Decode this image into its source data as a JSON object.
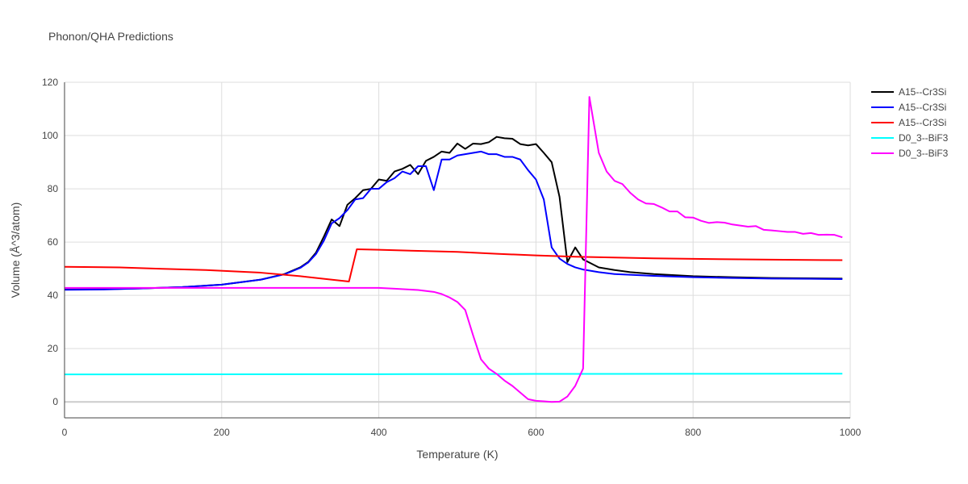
{
  "chart_data": {
    "type": "line",
    "title": "Phonon/QHA Predictions",
    "xlabel": "Temperature (K)",
    "ylabel": "Volume (Å^3/atom)",
    "xlim": [
      0,
      1000
    ],
    "ylim": [
      -6,
      120
    ],
    "xticks": [
      0,
      200,
      400,
      600,
      800,
      1000
    ],
    "yticks": [
      0,
      20,
      40,
      60,
      80,
      100,
      120
    ],
    "grid": true,
    "legend_position": "top-right",
    "series": [
      {
        "name": "A15--Cr3Si",
        "color": "#000000",
        "points": [
          [
            0,
            42.2
          ],
          [
            50,
            42.3
          ],
          [
            100,
            42.6
          ],
          [
            150,
            43.1
          ],
          [
            200,
            44.0
          ],
          [
            250,
            45.9
          ],
          [
            280,
            48.0
          ],
          [
            300,
            50.5
          ],
          [
            310,
            52.5
          ],
          [
            320,
            56.0
          ],
          [
            330,
            62.0
          ],
          [
            340,
            68.5
          ],
          [
            350,
            66.0
          ],
          [
            360,
            74.0
          ],
          [
            370,
            76.5
          ],
          [
            380,
            79.5
          ],
          [
            390,
            80.0
          ],
          [
            400,
            83.5
          ],
          [
            410,
            83.0
          ],
          [
            420,
            86.5
          ],
          [
            430,
            87.5
          ],
          [
            440,
            89.0
          ],
          [
            450,
            85.5
          ],
          [
            460,
            90.5
          ],
          [
            470,
            92.0
          ],
          [
            480,
            94.0
          ],
          [
            490,
            93.5
          ],
          [
            500,
            97.0
          ],
          [
            510,
            95.0
          ],
          [
            520,
            97.0
          ],
          [
            530,
            96.8
          ],
          [
            540,
            97.5
          ],
          [
            550,
            99.5
          ],
          [
            560,
            99.0
          ],
          [
            570,
            98.8
          ],
          [
            580,
            96.8
          ],
          [
            590,
            96.3
          ],
          [
            600,
            96.8
          ],
          [
            610,
            93.5
          ],
          [
            620,
            90.0
          ],
          [
            630,
            77.0
          ],
          [
            640,
            52.5
          ],
          [
            650,
            58.0
          ],
          [
            660,
            53.5
          ],
          [
            670,
            52.0
          ],
          [
            680,
            50.5
          ],
          [
            700,
            49.5
          ],
          [
            720,
            48.7
          ],
          [
            750,
            48.0
          ],
          [
            800,
            47.2
          ],
          [
            850,
            46.8
          ],
          [
            900,
            46.5
          ],
          [
            950,
            46.4
          ],
          [
            990,
            46.3
          ]
        ]
      },
      {
        "name": "A15--Cr3Si",
        "color": "#0000ff",
        "points": [
          [
            0,
            42.1
          ],
          [
            50,
            42.2
          ],
          [
            100,
            42.6
          ],
          [
            150,
            43.1
          ],
          [
            200,
            44.0
          ],
          [
            250,
            45.9
          ],
          [
            280,
            47.9
          ],
          [
            300,
            50.3
          ],
          [
            310,
            52.3
          ],
          [
            320,
            55.5
          ],
          [
            330,
            60.5
          ],
          [
            340,
            67.0
          ],
          [
            350,
            69.0
          ],
          [
            360,
            72.0
          ],
          [
            370,
            76.0
          ],
          [
            380,
            76.5
          ],
          [
            390,
            80.0
          ],
          [
            400,
            80.0
          ],
          [
            410,
            82.5
          ],
          [
            420,
            84.0
          ],
          [
            430,
            86.5
          ],
          [
            440,
            85.5
          ],
          [
            450,
            88.5
          ],
          [
            460,
            88.5
          ],
          [
            470,
            79.5
          ],
          [
            480,
            91.0
          ],
          [
            490,
            91.0
          ],
          [
            500,
            92.5
          ],
          [
            520,
            93.5
          ],
          [
            530,
            94.0
          ],
          [
            540,
            93.0
          ],
          [
            550,
            93.0
          ],
          [
            560,
            92.0
          ],
          [
            570,
            92.0
          ],
          [
            580,
            91.0
          ],
          [
            590,
            87.0
          ],
          [
            600,
            83.5
          ],
          [
            610,
            76.0
          ],
          [
            620,
            58.0
          ],
          [
            630,
            53.8
          ],
          [
            640,
            51.8
          ],
          [
            650,
            50.5
          ],
          [
            660,
            49.7
          ],
          [
            680,
            48.7
          ],
          [
            700,
            48.0
          ],
          [
            750,
            47.3
          ],
          [
            800,
            46.8
          ],
          [
            850,
            46.5
          ],
          [
            900,
            46.3
          ],
          [
            950,
            46.2
          ],
          [
            990,
            46.1
          ]
        ]
      },
      {
        "name": "A15--Cr3Si",
        "color": "#ff0000",
        "points": [
          [
            0,
            50.7
          ],
          [
            70,
            50.5
          ],
          [
            120,
            50.0
          ],
          [
            180,
            49.5
          ],
          [
            250,
            48.5
          ],
          [
            300,
            47.2
          ],
          [
            330,
            46.2
          ],
          [
            362,
            45.2
          ],
          [
            372,
            57.3
          ],
          [
            400,
            57.1
          ],
          [
            450,
            56.7
          ],
          [
            500,
            56.3
          ],
          [
            550,
            55.6
          ],
          [
            600,
            55.0
          ],
          [
            650,
            54.5
          ],
          [
            700,
            54.2
          ],
          [
            750,
            53.9
          ],
          [
            800,
            53.7
          ],
          [
            900,
            53.4
          ],
          [
            990,
            53.2
          ]
        ]
      },
      {
        "name": "D0_3--BiF3",
        "color": "#00ffff",
        "points": [
          [
            0,
            10.3
          ],
          [
            200,
            10.35
          ],
          [
            400,
            10.4
          ],
          [
            600,
            10.5
          ],
          [
            800,
            10.55
          ],
          [
            990,
            10.6
          ]
        ]
      },
      {
        "name": "D0_3--BiF3",
        "color": "#ff00ff",
        "points": [
          [
            0,
            42.8
          ],
          [
            100,
            42.8
          ],
          [
            200,
            42.8
          ],
          [
            300,
            42.8
          ],
          [
            400,
            42.8
          ],
          [
            420,
            42.5
          ],
          [
            450,
            42.0
          ],
          [
            470,
            41.3
          ],
          [
            480,
            40.5
          ],
          [
            490,
            39.2
          ],
          [
            500,
            37.5
          ],
          [
            510,
            34.5
          ],
          [
            520,
            25.0
          ],
          [
            530,
            16.0
          ],
          [
            540,
            12.5
          ],
          [
            550,
            10.5
          ],
          [
            560,
            8.0
          ],
          [
            570,
            6.0
          ],
          [
            580,
            3.5
          ],
          [
            590,
            1.0
          ],
          [
            600,
            0.4
          ],
          [
            610,
            0.2
          ],
          [
            620,
            0.0
          ],
          [
            630,
            0.1
          ],
          [
            640,
            2.0
          ],
          [
            650,
            6.0
          ],
          [
            660,
            12.5
          ],
          [
            668,
            114.5
          ],
          [
            680,
            93.5
          ],
          [
            690,
            86.5
          ],
          [
            700,
            83.0
          ],
          [
            710,
            81.8
          ],
          [
            720,
            78.5
          ],
          [
            730,
            76.0
          ],
          [
            740,
            74.5
          ],
          [
            750,
            74.3
          ],
          [
            760,
            73.0
          ],
          [
            770,
            71.5
          ],
          [
            780,
            71.5
          ],
          [
            790,
            69.3
          ],
          [
            800,
            69.2
          ],
          [
            810,
            68.0
          ],
          [
            820,
            67.2
          ],
          [
            830,
            67.5
          ],
          [
            840,
            67.3
          ],
          [
            850,
            66.6
          ],
          [
            860,
            66.2
          ],
          [
            870,
            65.8
          ],
          [
            880,
            66.0
          ],
          [
            890,
            64.6
          ],
          [
            900,
            64.4
          ],
          [
            910,
            64.1
          ],
          [
            920,
            63.8
          ],
          [
            930,
            63.8
          ],
          [
            940,
            63.1
          ],
          [
            950,
            63.4
          ],
          [
            960,
            62.7
          ],
          [
            970,
            62.8
          ],
          [
            980,
            62.7
          ],
          [
            990,
            61.8
          ]
        ]
      }
    ]
  }
}
